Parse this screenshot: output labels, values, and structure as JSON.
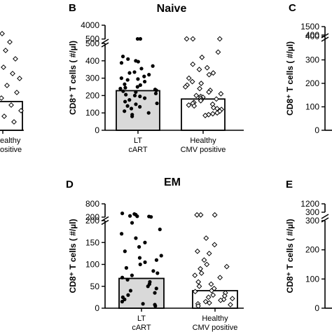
{
  "chart_data": [
    {
      "panel": "B",
      "title": "Naive",
      "type": "bar",
      "ylabel": "CD8⁺ T cells ( #/µl)",
      "y_axis": {
        "lower_ticks": [
          "0",
          "100",
          "200",
          "300",
          "400",
          "500"
        ],
        "upper_ticks": [
          "500",
          "4000"
        ],
        "lower_range": [
          0,
          500
        ],
        "upper_range": [
          450,
          4000
        ],
        "break": true
      },
      "categories": [
        {
          "label_lines": [
            "LT",
            "cART"
          ],
          "bar_value": 228,
          "bar_color": "#d9d9d9",
          "marker": "filled-circle",
          "points": [
            530,
            535,
            425,
            410,
            400,
            395,
            388,
            370,
            355,
            335,
            330,
            320,
            310,
            300,
            295,
            290,
            280,
            265,
            260,
            250,
            245,
            240,
            235,
            230,
            225,
            220,
            212,
            205,
            200,
            195,
            185,
            175,
            165,
            155,
            150,
            140,
            135,
            125,
            110,
            100,
            90,
            80
          ]
        },
        {
          "label_lines": [
            "Healthy",
            "CMV positive"
          ],
          "bar_value": 180,
          "bar_color": "#ffffff",
          "marker": "open-diamond",
          "points": [
            540,
            540,
            535,
            450,
            420,
            380,
            360,
            350,
            330,
            320,
            300,
            280,
            270,
            260,
            250,
            240,
            230,
            220,
            210,
            200,
            195,
            190,
            185,
            180,
            175,
            170,
            160,
            155,
            150,
            145,
            140,
            130,
            125,
            120,
            110,
            100,
            95,
            90,
            85
          ]
        }
      ]
    },
    {
      "panel": "D",
      "title": "EM",
      "type": "bar",
      "ylabel": "CD8⁺ T cells ( #/µl)",
      "y_axis": {
        "lower_ticks": [
          "0",
          "50",
          "100",
          "150",
          "200"
        ],
        "upper_ticks": [
          "200",
          "800"
        ],
        "lower_range": [
          0,
          200
        ],
        "upper_range": [
          200,
          800
        ],
        "break": true
      },
      "categories": [
        {
          "label_lines": [
            "LT",
            "cART"
          ],
          "bar_value": 68,
          "bar_color": "#d9d9d9",
          "marker": "filled-circle",
          "points": [
            370,
            340,
            310,
            255,
            240,
            230,
            210,
            195,
            180,
            170,
            160,
            150,
            140,
            130,
            120,
            115,
            110,
            105,
            100,
            92,
            85,
            80,
            75,
            70,
            65,
            60,
            55,
            50,
            45,
            40,
            35,
            30,
            25,
            20,
            15,
            10,
            8,
            5
          ]
        },
        {
          "label_lines": [
            "Healthy",
            "CMV positive"
          ],
          "bar_value": 40,
          "bar_color": "#ffffff",
          "marker": "open-diamond",
          "points": [
            300,
            300,
            300,
            160,
            145,
            130,
            125,
            110,
            100,
            95,
            90,
            80,
            75,
            70,
            60,
            55,
            50,
            45,
            40,
            38,
            35,
            30,
            28,
            25,
            22,
            20,
            18,
            15,
            12,
            10,
            8,
            5
          ]
        }
      ]
    },
    {
      "panel": "C",
      "type": "bar",
      "ylabel": "CD8⁺ T cells ( #/µl)",
      "y_axis": {
        "lower_ticks": [
          "0",
          "100",
          "200",
          "300",
          "400"
        ],
        "upper_ticks": [
          "400",
          "1500"
        ],
        "break": true
      }
    },
    {
      "panel": "E",
      "type": "bar",
      "ylabel": "CD8⁺ T cells ( #/µl)",
      "y_axis": {
        "lower_ticks": [
          "0",
          "100",
          "200",
          "300"
        ],
        "upper_ticks": [
          "300",
          "1200"
        ],
        "break": true
      }
    }
  ],
  "left_partial": {
    "labels": [
      "ealthy",
      "ositive"
    ]
  }
}
